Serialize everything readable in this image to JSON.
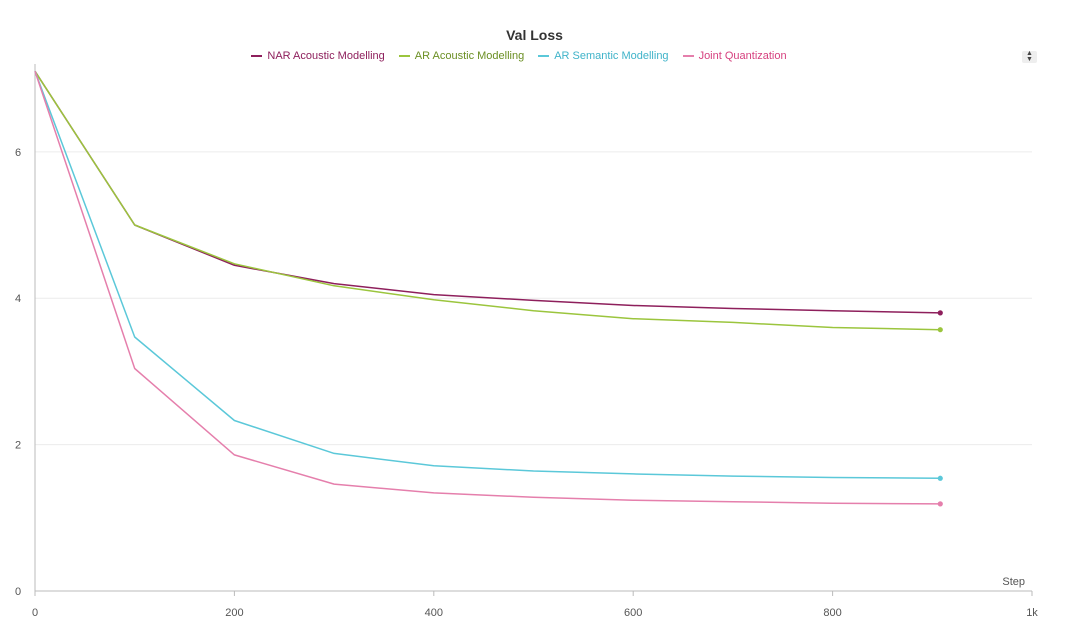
{
  "chart_data": {
    "type": "line",
    "title": "Val Loss",
    "xlabel": "Step",
    "ylabel": "",
    "xlim": [
      0,
      1000
    ],
    "ylim": [
      0,
      7.2
    ],
    "x_ticks": [
      0,
      200,
      400,
      600,
      800,
      1000
    ],
    "x_tick_labels": [
      "0",
      "200",
      "400",
      "600",
      "800",
      "1k"
    ],
    "y_ticks": [
      0,
      2,
      4,
      6
    ],
    "y_tick_labels": [
      "0",
      "2",
      "4",
      "6"
    ],
    "grid": true,
    "legend_position": "top",
    "series": [
      {
        "name": "NAR Acoustic Modelling",
        "color": "#8e1f5c",
        "x": [
          0,
          100,
          200,
          300,
          400,
          500,
          600,
          700,
          800,
          908
        ],
        "y": [
          7.1,
          5.0,
          4.45,
          4.2,
          4.05,
          3.97,
          3.9,
          3.86,
          3.83,
          3.8
        ]
      },
      {
        "name": "AR Acoustic Modelling",
        "color": "#9bc53d",
        "x": [
          0,
          100,
          200,
          300,
          400,
          500,
          600,
          700,
          800,
          908
        ],
        "y": [
          7.1,
          5.0,
          4.47,
          4.17,
          3.98,
          3.83,
          3.72,
          3.67,
          3.6,
          3.57
        ]
      },
      {
        "name": "AR Semantic Modelling",
        "color": "#5bc8d9",
        "x": [
          0,
          100,
          200,
          300,
          400,
          500,
          600,
          700,
          800,
          908
        ],
        "y": [
          7.1,
          3.47,
          2.33,
          1.88,
          1.71,
          1.64,
          1.6,
          1.57,
          1.55,
          1.54
        ]
      },
      {
        "name": "Joint Quantization",
        "color": "#e57fac",
        "x": [
          0,
          100,
          200,
          300,
          400,
          500,
          600,
          700,
          800,
          908
        ],
        "y": [
          7.1,
          3.04,
          1.86,
          1.46,
          1.34,
          1.28,
          1.24,
          1.22,
          1.2,
          1.19
        ]
      }
    ]
  },
  "legend_colors": {
    "nar": "#8e1f5c",
    "ar_acoustic": "#6b8f23",
    "ar_semantic": "#3fb3c9",
    "joint": "#d6417f"
  },
  "legend_toggle_icon": "sort-arrows-icon"
}
